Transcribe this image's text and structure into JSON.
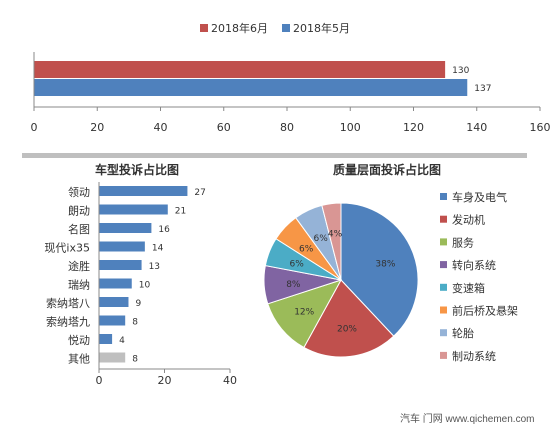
{
  "chart_data": [
    {
      "type": "bar",
      "orientation": "horizontal",
      "series": [
        {
          "name": "2018年6月",
          "values": [
            130
          ],
          "color": "#C0504D"
        },
        {
          "name": "2018年5月",
          "values": [
            137
          ],
          "color": "#4F81BD"
        }
      ],
      "xlim": [
        0,
        160
      ],
      "xticks": [
        "0",
        "20",
        "40",
        "60",
        "80",
        "100",
        "120",
        "140",
        "160"
      ],
      "legend": "top",
      "grid": false
    },
    {
      "type": "bar",
      "orientation": "horizontal",
      "title": "车型投诉占比图",
      "categories": [
        "领动",
        "朗动",
        "名图",
        "现代ix35",
        "途胜",
        "瑞纳",
        "索纳塔八",
        "索纳塔九",
        "悦动",
        "其他"
      ],
      "values": [
        27,
        21,
        16,
        14,
        13,
        10,
        9,
        8,
        4,
        8
      ],
      "colors": [
        "#4F81BD",
        "#4F81BD",
        "#4F81BD",
        "#4F81BD",
        "#4F81BD",
        "#4F81BD",
        "#4F81BD",
        "#4F81BD",
        "#4F81BD",
        "#BFBFBF"
      ],
      "xlim": [
        0,
        40
      ],
      "xticks": [
        "0",
        "20",
        "40"
      ],
      "grid": false
    },
    {
      "type": "pie",
      "title": "质量层面投诉占比图",
      "labels": [
        "车身及电气",
        "发动机",
        "服务",
        "转向系统",
        "变速箱",
        "前后桥及悬架",
        "轮胎",
        "制动系统"
      ],
      "values": [
        38,
        20,
        12,
        8,
        6,
        6,
        6,
        4
      ],
      "value_labels": [
        "38%",
        "20%",
        "12%",
        "8%",
        "6%",
        "6%",
        "6%",
        "4%"
      ],
      "colors": [
        "#4F81BD",
        "#C0504D",
        "#9BBB59",
        "#8064A2",
        "#4BACC6",
        "#F79646",
        "#95B3D7",
        "#D99694"
      ],
      "legend": "right"
    }
  ],
  "watermark": "汽车 门网 www.qichemen.com"
}
